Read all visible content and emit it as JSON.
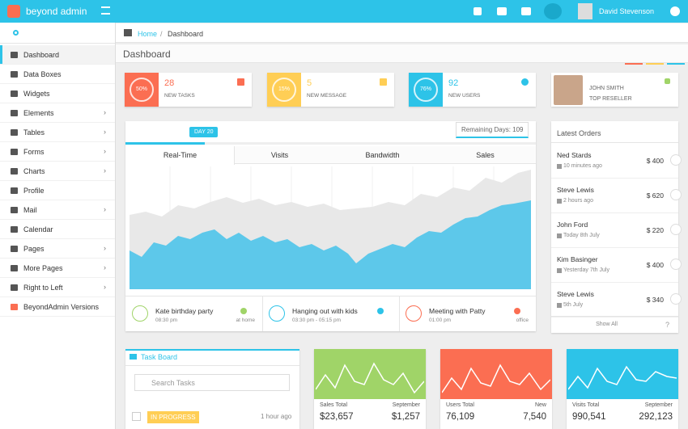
{
  "header": {
    "brand": "beyond admin",
    "user": "David Stevenson"
  },
  "sidebar": {
    "items": [
      "Dashboard",
      "Data Boxes",
      "Widgets",
      "Elements",
      "Tables",
      "Forms",
      "Charts",
      "Profile",
      "Mail",
      "Calendar",
      "Pages",
      "More Pages",
      "Right to Left",
      "BeyondAdmin Versions"
    ]
  },
  "breadcrumb": [
    "Home",
    "Dashboard"
  ],
  "page_title": "Dashboard",
  "stat_boxes": [
    {
      "ring": "50%",
      "value": "28",
      "label": "NEW TASKS"
    },
    {
      "ring": "15%",
      "value": "5",
      "label": "NEW MESSAGE"
    },
    {
      "ring": "76%",
      "value": "92",
      "label": "NEW USERS"
    }
  ],
  "profile": {
    "name": "JOHN SMITH",
    "role": "TOP RESELLER"
  },
  "main_chart": {
    "badge": "DAY 20",
    "remaining": "Remaining Days: 109",
    "tabs": [
      "Real-Time",
      "Visits",
      "Bandwidth",
      "Sales"
    ]
  },
  "events": [
    {
      "title": "Kate birthday party",
      "time": "08:30 pm",
      "place": "at home"
    },
    {
      "title": "Hanging out with kids",
      "time": "03:30 pm - 05:15 pm"
    },
    {
      "title": "Meeting with Patty",
      "time": "01:00 pm",
      "place": "office"
    }
  ],
  "orders": {
    "title": "Latest Orders",
    "items": [
      {
        "name": "Ned Stards",
        "time": "10 minutes ago",
        "amount": "$ 400"
      },
      {
        "name": "Steve Lewis",
        "time": "2 hours ago",
        "amount": "$ 620"
      },
      {
        "name": "John Ford",
        "time": "Today 8th July",
        "amount": "$ 220"
      },
      {
        "name": "Kim Basinger",
        "time": "Yesterday 7th July",
        "amount": "$ 400"
      },
      {
        "name": "Steve Lewis",
        "time": "5th July",
        "amount": "$ 340"
      }
    ],
    "show_all": "Show All",
    "help": "?"
  },
  "task_board": {
    "title": "Task Board",
    "search": "Search Tasks",
    "task": {
      "status": "IN PROGRESS",
      "time": "1 hour ago"
    }
  },
  "mini_charts": [
    {
      "left_label": "Sales Total",
      "right_label": "September",
      "left_value": "$23,657",
      "right_value": "$1,257"
    },
    {
      "left_label": "Users Total",
      "right_label": "New",
      "left_value": "76,109",
      "right_value": "7,540"
    },
    {
      "left_label": "Visits Total",
      "right_label": "September",
      "left_value": "990,541",
      "right_value": "292,123"
    }
  ]
}
